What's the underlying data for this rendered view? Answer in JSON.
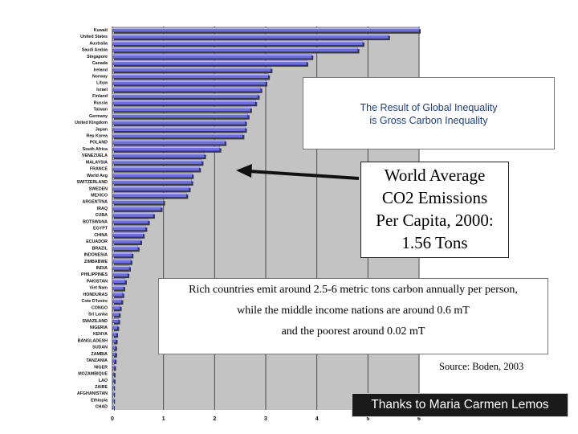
{
  "chart_data": {
    "type": "bar",
    "orientation": "horizontal",
    "categories": [
      "Kuwait",
      "United States",
      "Australia",
      "Saudi Arabia",
      "Singapore",
      "Canada",
      "Ireland",
      "Norway",
      "Libya",
      "Israel",
      "Finland",
      "Russia",
      "Taiwan",
      "Germany",
      "United Kingdom",
      "Japan",
      "Rep Korea",
      "POLAND",
      "South Africa",
      "VENEZUELA",
      "MALAYSIA",
      "FRANCE",
      "World Avg",
      "SWITZERLAND",
      "SWEDEN",
      "MEXICO",
      "ARGENTINA",
      "IRAQ",
      "CUBA",
      "BOTSWANA",
      "EGYPT",
      "CHINA",
      "ECUADOR",
      "BRAZIL",
      "INDONESIA",
      "ZIMBABWE",
      "INDIA",
      "PHILIPPINES",
      "PAKISTAN",
      "Viet Nam",
      "HONDURAS",
      "Cote D'Ivoire",
      "CONGO",
      "Sri Lanka",
      "SWAZILAND",
      "NIGERIA",
      "KENYA",
      "BANGLADESH",
      "SUDAN",
      "ZAMBIA",
      "TANZANIA",
      "NIGER",
      "MOZAMBIQUE",
      "LAO",
      "ZAIRE",
      "AFGHANISTAN",
      "Ethiopia",
      "CHAD"
    ],
    "values": [
      6.0,
      5.4,
      4.9,
      4.8,
      3.9,
      3.8,
      3.1,
      3.05,
      3.0,
      2.9,
      2.85,
      2.8,
      2.7,
      2.65,
      2.6,
      2.6,
      2.55,
      2.2,
      2.1,
      1.8,
      1.75,
      1.7,
      1.56,
      1.55,
      1.5,
      1.45,
      1.0,
      0.95,
      0.8,
      0.7,
      0.65,
      0.6,
      0.55,
      0.5,
      0.38,
      0.36,
      0.33,
      0.3,
      0.25,
      0.22,
      0.2,
      0.18,
      0.15,
      0.13,
      0.12,
      0.1,
      0.08,
      0.07,
      0.06,
      0.06,
      0.05,
      0.04,
      0.03,
      0.03,
      0.02,
      0.02,
      0.02,
      0.01
    ],
    "xlim": [
      0,
      6
    ],
    "xticks": [
      "0",
      "1",
      "2",
      "3",
      "4",
      "5",
      "6"
    ],
    "grid": true,
    "colors": {
      "bar": "#6e6ee0",
      "bar_highlight": "#b6b6f7",
      "plot_bg": "#c3c3c3",
      "grid": "#4a4a4a"
    }
  },
  "annotations": {
    "title_box": [
      "The Result of Global Inequality",
      "is Gross Carbon Inequality"
    ],
    "world_average_box": [
      "World Average",
      "CO2 Emissions",
      "Per Capita, 2000:",
      "1.56 Tons"
    ],
    "rich_poor_box": [
      "Rich countries emit around 2.5-6 metric tons carbon annually per person,",
      "while the middle income nations are around 0.6 mT",
      "and the poorest around 0.02 mT"
    ],
    "source": "Source: Boden, 2003",
    "credit": "Thanks to Maria Carmen Lemos"
  }
}
